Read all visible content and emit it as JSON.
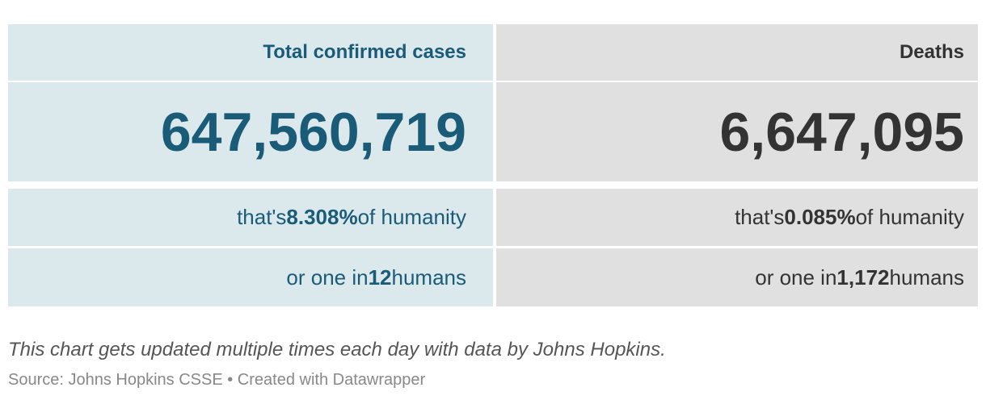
{
  "table": {
    "columns": [
      {
        "header": "Total confirmed cases",
        "total": "647,560,719",
        "share": [
          "that's",
          "8.308%",
          "of humanity"
        ],
        "ratio": [
          "or one in",
          "12",
          "humans"
        ]
      },
      {
        "header": "Deaths",
        "total": "6,647,095",
        "share": [
          "that's",
          "0.085%",
          "of humanity"
        ],
        "ratio": [
          "or one in",
          "1,172",
          "humans"
        ]
      }
    ]
  },
  "notes": "This chart gets updated multiple times each day with data by Johns Hopkins.",
  "source": "Source: Johns Hopkins CSSE • Created with Datawrapper"
}
